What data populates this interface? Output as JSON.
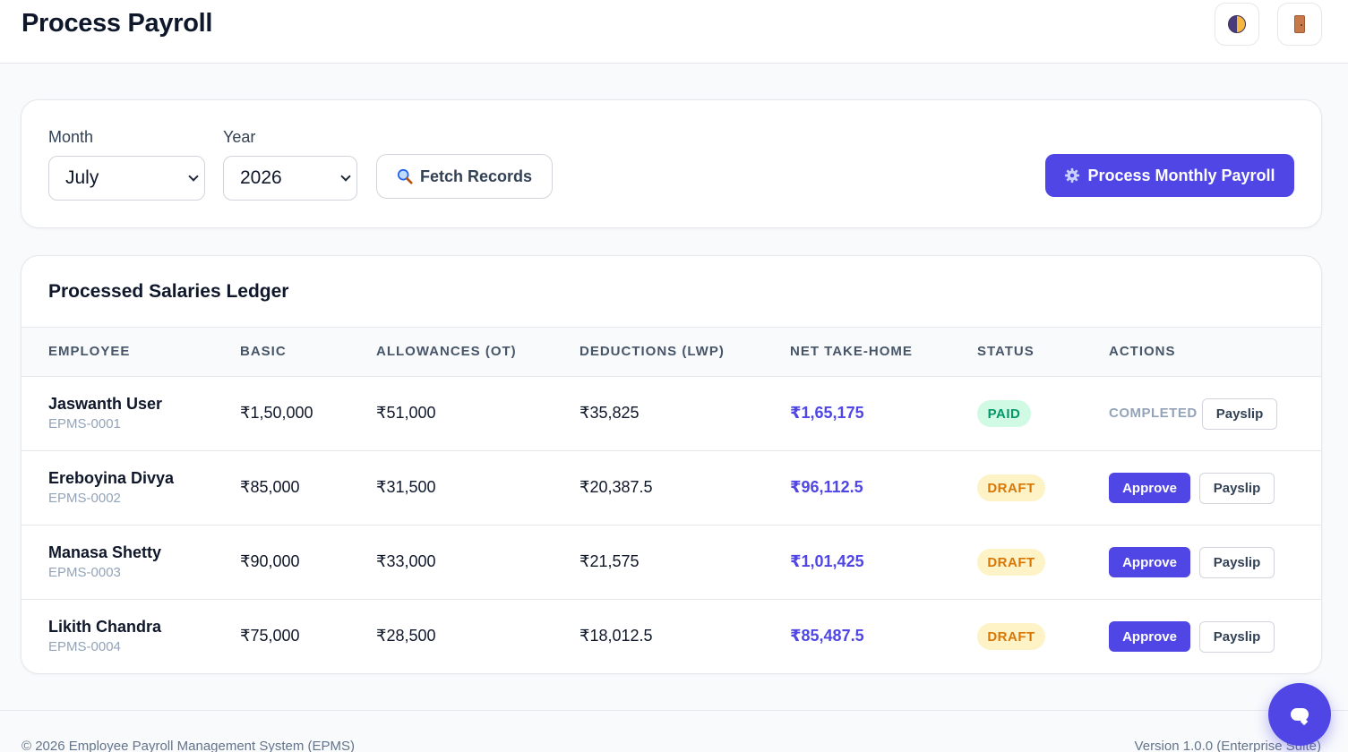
{
  "header": {
    "title": "Process Payroll",
    "theme_icon": "half-circle-theme-icon",
    "logout_icon": "door-icon"
  },
  "filters": {
    "month_label": "Month",
    "month_value": "July",
    "year_label": "Year",
    "year_value": "2026",
    "fetch_label": "Fetch Records",
    "fetch_icon": "magnifier-icon",
    "process_label": "Process Monthly Payroll",
    "process_icon": "gear-icon"
  },
  "ledger": {
    "title": "Processed Salaries Ledger",
    "columns": [
      "Employee",
      "Basic",
      "Allowances (OT)",
      "Deductions (LWP)",
      "Net Take-Home",
      "Status",
      "Actions"
    ],
    "rows": [
      {
        "name": "Jaswanth User",
        "id": "EPMS-0001",
        "basic": "₹1,50,000",
        "allowances": "₹51,000",
        "deductions": "₹35,825",
        "net": "₹1,65,175",
        "status": "PAID",
        "action": "COMPLETED",
        "payslip": "Payslip"
      },
      {
        "name": "Ereboyina Divya",
        "id": "EPMS-0002",
        "basic": "₹85,000",
        "allowances": "₹31,500",
        "deductions": "₹20,387.5",
        "net": "₹96,112.5",
        "status": "DRAFT",
        "action": "Approve",
        "payslip": "Payslip"
      },
      {
        "name": "Manasa Shetty",
        "id": "EPMS-0003",
        "basic": "₹90,000",
        "allowances": "₹33,000",
        "deductions": "₹21,575",
        "net": "₹1,01,425",
        "status": "DRAFT",
        "action": "Approve",
        "payslip": "Payslip"
      },
      {
        "name": "Likith Chandra",
        "id": "EPMS-0004",
        "basic": "₹75,000",
        "allowances": "₹28,500",
        "deductions": "₹18,012.5",
        "net": "₹85,487.5",
        "status": "DRAFT",
        "action": "Approve",
        "payslip": "Payslip"
      }
    ]
  },
  "footer": {
    "copyright": "© 2026 Employee Payroll Management System (EPMS)",
    "version": "Version 1.0.0 (Enterprise Suite)"
  },
  "colors": {
    "primary": "#4f46e5",
    "paid_bg": "#d1fae5",
    "paid_text": "#059669",
    "draft_bg": "#fef3c7",
    "draft_text": "#d97706"
  },
  "chat": {
    "icon": "chat-bubble-icon"
  }
}
